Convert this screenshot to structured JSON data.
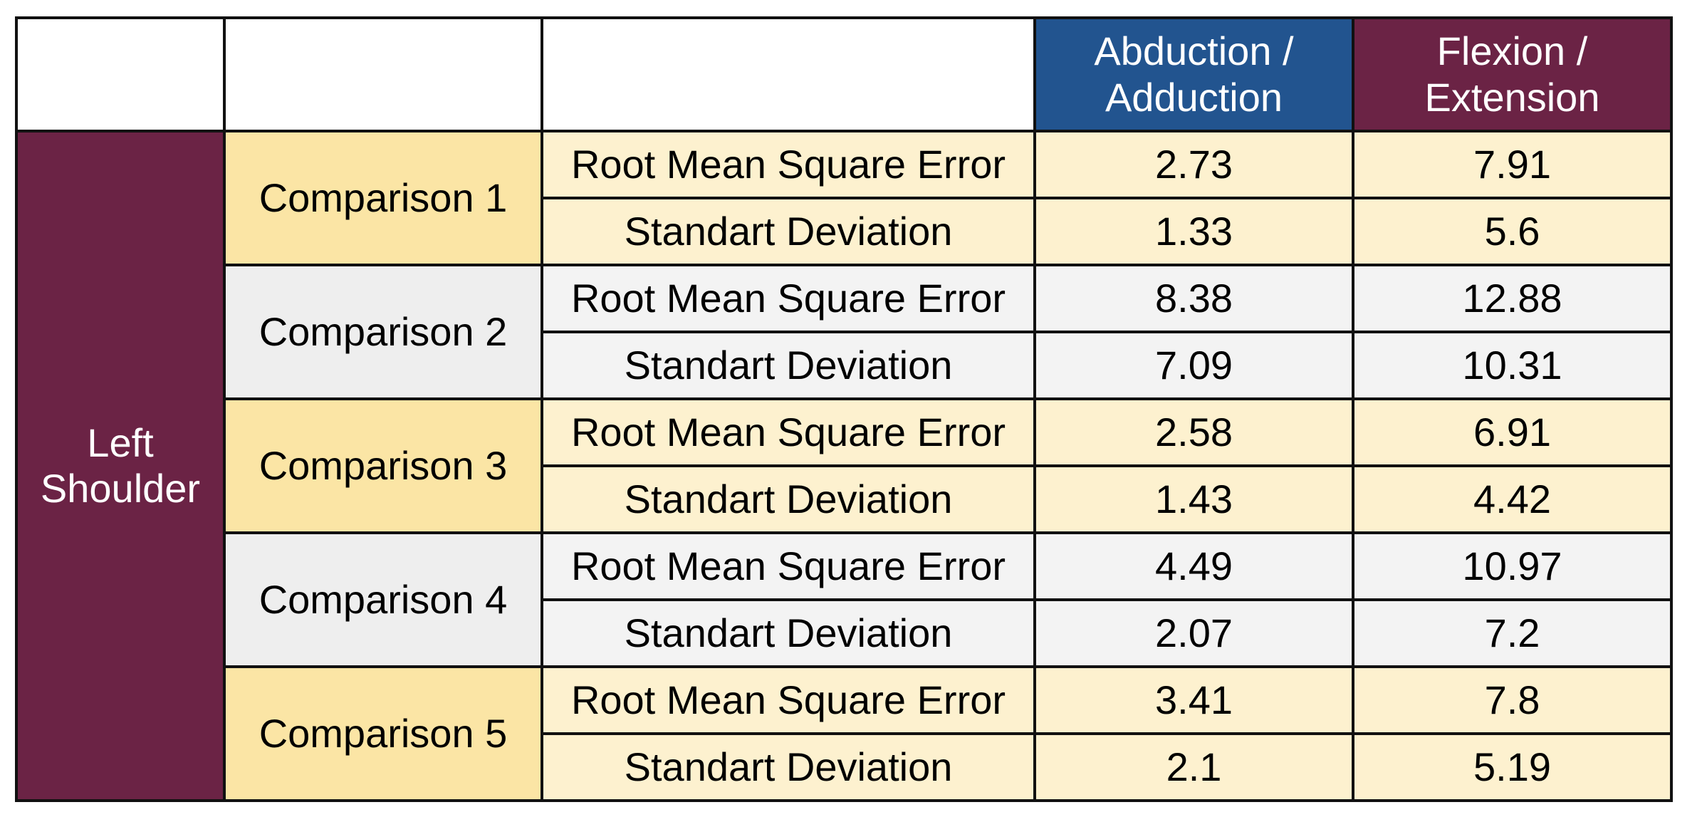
{
  "chart_data": {
    "type": "table",
    "columns": [
      "",
      "",
      "",
      "Abduction / Adduction",
      "Flexion / Extension"
    ],
    "headers": [
      {
        "label_line1": "Abduction /",
        "label_line2": "Adduction",
        "color": "#22548F"
      },
      {
        "label_line1": "Flexion /",
        "label_line2": "Extension",
        "color": "#6B2345"
      }
    ],
    "region": {
      "line1": "Left",
      "line2": "Shoulder",
      "color": "#6B2345"
    },
    "groups": [
      {
        "comparison": "Comparison 1",
        "label_color": "#FBE5A5",
        "row_color": "#FDF1CF",
        "rows": [
          {
            "metric": "Root Mean Square Error",
            "abduction_adduction": "2.73",
            "flexion_extension": "7.91"
          },
          {
            "metric": "Standart Deviation",
            "abduction_adduction": "1.33",
            "flexion_extension": "5.6"
          }
        ]
      },
      {
        "comparison": "Comparison 2",
        "label_color": "#EEEEEE",
        "row_color": "#F3F3F3",
        "rows": [
          {
            "metric": "Root Mean Square Error",
            "abduction_adduction": "8.38",
            "flexion_extension": "12.88"
          },
          {
            "metric": "Standart Deviation",
            "abduction_adduction": "7.09",
            "flexion_extension": "10.31"
          }
        ]
      },
      {
        "comparison": "Comparison 3",
        "label_color": "#FBE5A5",
        "row_color": "#FDF1CF",
        "rows": [
          {
            "metric": "Root Mean Square Error",
            "abduction_adduction": "2.58",
            "flexion_extension": "6.91"
          },
          {
            "metric": "Standart Deviation",
            "abduction_adduction": "1.43",
            "flexion_extension": "4.42"
          }
        ]
      },
      {
        "comparison": "Comparison 4",
        "label_color": "#EEEEEE",
        "row_color": "#F3F3F3",
        "rows": [
          {
            "metric": "Root Mean Square Error",
            "abduction_adduction": "4.49",
            "flexion_extension": "10.97"
          },
          {
            "metric": "Standart Deviation",
            "abduction_adduction": "2.07",
            "flexion_extension": "7.2"
          }
        ]
      },
      {
        "comparison": "Comparison 5",
        "label_color": "#FBE5A5",
        "row_color": "#FDF1CF",
        "rows": [
          {
            "metric": "Root Mean Square Error",
            "abduction_adduction": "3.41",
            "flexion_extension": "7.8"
          },
          {
            "metric": "Standart Deviation",
            "abduction_adduction": "2.1",
            "flexion_extension": "5.19"
          }
        ]
      }
    ]
  }
}
